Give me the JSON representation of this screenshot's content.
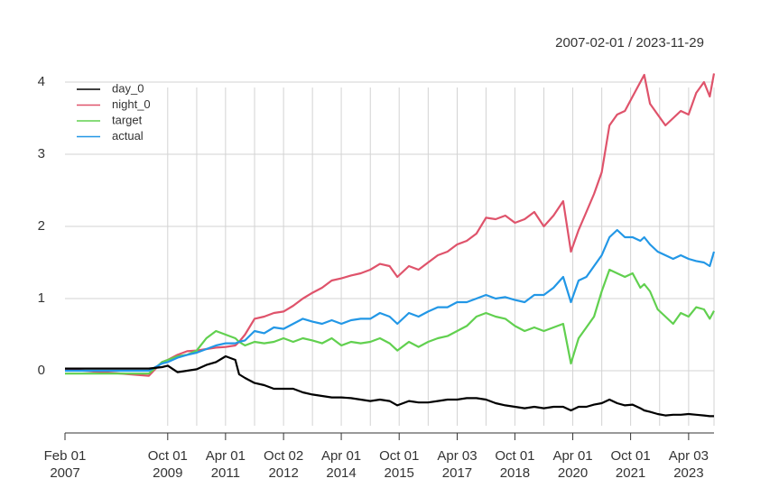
{
  "chart_data": {
    "type": "line",
    "title": "2007-02-01 / 2023-11-29",
    "x": [
      2007.085,
      2009.26,
      2009.6,
      2009.75,
      2010.0,
      2010.25,
      2010.5,
      2010.75,
      2011.0,
      2011.25,
      2011.5,
      2011.6,
      2011.75,
      2012.0,
      2012.25,
      2012.5,
      2012.75,
      2013.0,
      2013.25,
      2013.5,
      2013.75,
      2014.0,
      2014.25,
      2014.5,
      2014.75,
      2015.0,
      2015.25,
      2015.5,
      2015.7,
      2016.0,
      2016.25,
      2016.5,
      2016.75,
      2017.0,
      2017.25,
      2017.5,
      2017.75,
      2018.0,
      2018.25,
      2018.5,
      2018.75,
      2019.0,
      2019.25,
      2019.5,
      2019.75,
      2020.0,
      2020.2,
      2020.4,
      2020.6,
      2020.8,
      2021.0,
      2021.2,
      2021.4,
      2021.6,
      2021.8,
      2022.0,
      2022.1,
      2022.25,
      2022.45,
      2022.65,
      2022.85,
      2023.05,
      2023.25,
      2023.45,
      2023.65,
      2023.8,
      2023.91
    ],
    "series": [
      {
        "name": "day_0",
        "color": "#000000",
        "values": [
          0.03,
          0.03,
          0.05,
          0.07,
          -0.02,
          0.0,
          0.02,
          0.08,
          0.12,
          0.2,
          0.15,
          -0.05,
          -0.1,
          -0.17,
          -0.2,
          -0.25,
          -0.25,
          -0.25,
          -0.3,
          -0.33,
          -0.35,
          -0.37,
          -0.37,
          -0.38,
          -0.4,
          -0.42,
          -0.4,
          -0.42,
          -0.48,
          -0.42,
          -0.44,
          -0.44,
          -0.42,
          -0.4,
          -0.4,
          -0.38,
          -0.38,
          -0.4,
          -0.45,
          -0.48,
          -0.5,
          -0.52,
          -0.5,
          -0.52,
          -0.5,
          -0.5,
          -0.55,
          -0.5,
          -0.5,
          -0.47,
          -0.45,
          -0.4,
          -0.45,
          -0.48,
          -0.47,
          -0.52,
          -0.55,
          -0.57,
          -0.6,
          -0.62,
          -0.61,
          -0.61,
          -0.6,
          -0.61,
          -0.62,
          -0.63,
          -0.63
        ]
      },
      {
        "name": "night_0",
        "color": "#DF536B",
        "values": [
          0.02,
          -0.07,
          0.12,
          0.15,
          0.22,
          0.27,
          0.28,
          0.3,
          0.32,
          0.33,
          0.35,
          0.4,
          0.5,
          0.72,
          0.75,
          0.8,
          0.82,
          0.9,
          1.0,
          1.08,
          1.15,
          1.25,
          1.28,
          1.32,
          1.35,
          1.4,
          1.48,
          1.45,
          1.3,
          1.45,
          1.4,
          1.5,
          1.6,
          1.65,
          1.75,
          1.8,
          1.9,
          2.12,
          2.1,
          2.15,
          2.05,
          2.1,
          2.2,
          2.0,
          2.15,
          2.35,
          1.65,
          1.95,
          2.2,
          2.45,
          2.75,
          3.4,
          3.55,
          3.6,
          3.8,
          4.0,
          4.1,
          3.7,
          3.55,
          3.4,
          3.5,
          3.6,
          3.55,
          3.85,
          4.0,
          3.8,
          4.12
        ]
      },
      {
        "name": "target",
        "color": "#61D04F",
        "values": [
          -0.04,
          -0.04,
          0.12,
          0.15,
          0.2,
          0.22,
          0.28,
          0.45,
          0.55,
          0.5,
          0.45,
          0.4,
          0.35,
          0.4,
          0.38,
          0.4,
          0.45,
          0.4,
          0.45,
          0.42,
          0.38,
          0.45,
          0.35,
          0.4,
          0.38,
          0.4,
          0.45,
          0.38,
          0.28,
          0.4,
          0.33,
          0.4,
          0.45,
          0.48,
          0.55,
          0.62,
          0.75,
          0.8,
          0.75,
          0.72,
          0.62,
          0.55,
          0.6,
          0.55,
          0.6,
          0.65,
          0.1,
          0.45,
          0.6,
          0.75,
          1.1,
          1.4,
          1.35,
          1.3,
          1.35,
          1.15,
          1.2,
          1.1,
          0.85,
          0.75,
          0.65,
          0.8,
          0.75,
          0.88,
          0.85,
          0.72,
          0.83
        ]
      },
      {
        "name": "actual",
        "color": "#2297E6",
        "values": [
          0.0,
          0.0,
          0.1,
          0.12,
          0.18,
          0.22,
          0.25,
          0.3,
          0.35,
          0.38,
          0.38,
          0.4,
          0.42,
          0.55,
          0.52,
          0.6,
          0.58,
          0.65,
          0.72,
          0.68,
          0.65,
          0.7,
          0.65,
          0.7,
          0.72,
          0.72,
          0.8,
          0.75,
          0.65,
          0.8,
          0.75,
          0.82,
          0.88,
          0.88,
          0.95,
          0.95,
          1.0,
          1.05,
          1.0,
          1.02,
          0.98,
          0.95,
          1.05,
          1.05,
          1.15,
          1.3,
          0.95,
          1.25,
          1.3,
          1.45,
          1.6,
          1.85,
          1.95,
          1.85,
          1.85,
          1.8,
          1.85,
          1.75,
          1.65,
          1.6,
          1.55,
          1.6,
          1.55,
          1.52,
          1.5,
          1.45,
          1.65
        ]
      }
    ],
    "xlim": [
      2007.085,
      2023.91
    ],
    "xticks": [
      {
        "value": 2007.085,
        "label": "Feb 01 2007"
      },
      {
        "value": 2009.748,
        "label": "Oct 01 2009"
      },
      {
        "value": 2011.247,
        "label": "Apr 01 2011"
      },
      {
        "value": 2012.751,
        "label": "Oct 02 2012"
      },
      {
        "value": 2014.247,
        "label": "Apr 01 2014"
      },
      {
        "value": 2015.748,
        "label": "Oct 01 2015"
      },
      {
        "value": 2017.252,
        "label": "Apr 03 2017"
      },
      {
        "value": 2018.748,
        "label": "Oct 01 2018"
      },
      {
        "value": 2020.249,
        "label": "Apr 01 2020"
      },
      {
        "value": 2021.748,
        "label": "Oct 01 2021"
      },
      {
        "value": 2023.252,
        "label": "Apr 03 2023"
      }
    ],
    "xminor": [
      2010.5,
      2012.0,
      2013.5,
      2015.0,
      2016.5,
      2018.0,
      2019.5,
      2021.0,
      2022.5,
      2023.91
    ],
    "ylim": [
      -0.65,
      4.15
    ],
    "yticks": [
      0,
      1,
      2,
      3,
      4
    ],
    "grid": true,
    "legend": "top-left"
  }
}
